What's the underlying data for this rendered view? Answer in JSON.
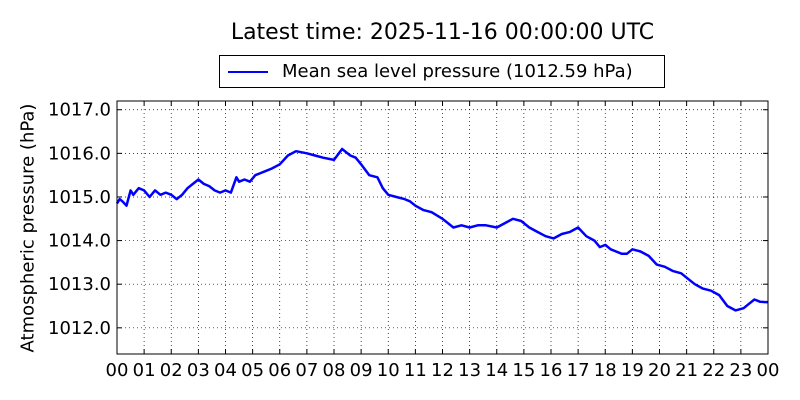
{
  "chart_data": {
    "type": "line",
    "title": "Latest time: 2025-11-16 00:00:00 UTC",
    "ylabel": "Atmospheric pressure (hPa)",
    "xlabel": "",
    "xlim": [
      0,
      24
    ],
    "ylim": [
      1011.4,
      1017.2
    ],
    "grid": true,
    "legend_position": "top-center",
    "x_ticks": [
      "00",
      "01",
      "02",
      "03",
      "04",
      "05",
      "06",
      "07",
      "08",
      "09",
      "10",
      "11",
      "12",
      "13",
      "14",
      "15",
      "16",
      "17",
      "18",
      "19",
      "20",
      "21",
      "22",
      "23",
      "00"
    ],
    "y_ticks": [
      "1012.0",
      "1013.0",
      "1014.0",
      "1015.0",
      "1016.0",
      "1017.0"
    ],
    "series": [
      {
        "name": "Mean sea level pressure (1012.59 hPa)",
        "color": "#0000ff",
        "x": [
          0,
          0.1,
          0.2,
          0.35,
          0.5,
          0.6,
          0.8,
          1.0,
          1.2,
          1.4,
          1.6,
          1.8,
          2.0,
          2.2,
          2.4,
          2.6,
          2.8,
          3.0,
          3.2,
          3.4,
          3.6,
          3.8,
          4.0,
          4.2,
          4.4,
          4.5,
          4.7,
          4.9,
          5.1,
          5.3,
          5.5,
          5.7,
          6.0,
          6.3,
          6.6,
          7.0,
          7.3,
          7.6,
          8.0,
          8.3,
          8.6,
          8.8,
          9.0,
          9.3,
          9.6,
          9.8,
          10.0,
          10.3,
          10.6,
          10.8,
          11.0,
          11.3,
          11.6,
          12.0,
          12.4,
          12.7,
          13.0,
          13.3,
          13.6,
          14.0,
          14.3,
          14.6,
          14.9,
          15.2,
          15.5,
          15.8,
          16.1,
          16.4,
          16.7,
          17.0,
          17.3,
          17.6,
          17.8,
          18.0,
          18.2,
          18.4,
          18.6,
          18.8,
          19.0,
          19.3,
          19.6,
          19.9,
          20.2,
          20.5,
          20.8,
          21.0,
          21.3,
          21.6,
          21.9,
          22.2,
          22.5,
          22.8,
          23.1,
          23.3,
          23.5,
          23.7,
          23.9,
          24.0
        ],
        "y": [
          1014.85,
          1014.95,
          1014.9,
          1014.8,
          1015.15,
          1015.05,
          1015.2,
          1015.15,
          1015.0,
          1015.15,
          1015.05,
          1015.1,
          1015.05,
          1014.95,
          1015.05,
          1015.2,
          1015.3,
          1015.4,
          1015.3,
          1015.25,
          1015.15,
          1015.1,
          1015.15,
          1015.1,
          1015.45,
          1015.35,
          1015.4,
          1015.35,
          1015.5,
          1015.55,
          1015.6,
          1015.65,
          1015.75,
          1015.95,
          1016.05,
          1016.0,
          1015.95,
          1015.9,
          1015.85,
          1016.1,
          1015.95,
          1015.9,
          1015.75,
          1015.5,
          1015.45,
          1015.2,
          1015.05,
          1015.0,
          1014.95,
          1014.9,
          1014.8,
          1014.7,
          1014.65,
          1014.5,
          1014.3,
          1014.35,
          1014.3,
          1014.35,
          1014.35,
          1014.3,
          1014.4,
          1014.5,
          1014.45,
          1014.3,
          1014.2,
          1014.1,
          1014.05,
          1014.15,
          1014.2,
          1014.3,
          1014.1,
          1014.0,
          1013.85,
          1013.9,
          1013.8,
          1013.75,
          1013.7,
          1013.7,
          1013.8,
          1013.75,
          1013.65,
          1013.45,
          1013.4,
          1013.3,
          1013.25,
          1013.15,
          1013.0,
          1012.9,
          1012.85,
          1012.75,
          1012.5,
          1012.4,
          1012.45,
          1012.55,
          1012.65,
          1012.6,
          1012.59,
          1012.59
        ]
      }
    ]
  }
}
